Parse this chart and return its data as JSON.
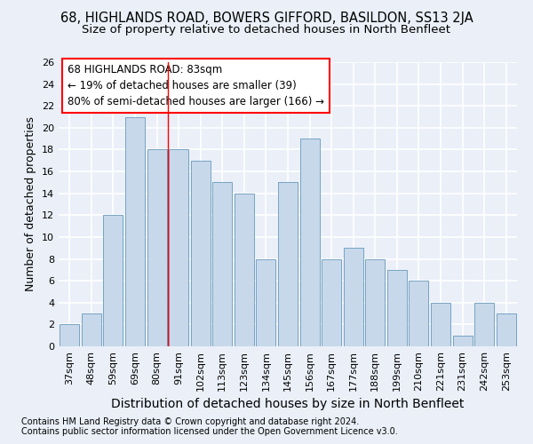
{
  "title_line1": "68, HIGHLANDS ROAD, BOWERS GIFFORD, BASILDON, SS13 2JA",
  "title_line2": "Size of property relative to detached houses in North Benfleet",
  "xlabel": "Distribution of detached houses by size in North Benfleet",
  "ylabel": "Number of detached properties",
  "footnote1": "Contains HM Land Registry data © Crown copyright and database right 2024.",
  "footnote2": "Contains public sector information licensed under the Open Government Licence v3.0.",
  "categories": [
    "37sqm",
    "48sqm",
    "59sqm",
    "69sqm",
    "80sqm",
    "91sqm",
    "102sqm",
    "113sqm",
    "123sqm",
    "134sqm",
    "145sqm",
    "156sqm",
    "167sqm",
    "177sqm",
    "188sqm",
    "199sqm",
    "210sqm",
    "221sqm",
    "231sqm",
    "242sqm",
    "253sqm"
  ],
  "values": [
    2,
    3,
    12,
    21,
    18,
    18,
    17,
    15,
    14,
    8,
    15,
    19,
    8,
    9,
    8,
    7,
    6,
    4,
    1,
    4,
    3
  ],
  "bar_color": "#c8d8eb",
  "bar_edge_color": "#6699bb",
  "highlight_bar_index": 4,
  "highlight_line_color": "red",
  "annotation_line1": "68 HIGHLANDS ROAD: 83sqm",
  "annotation_line2": "← 19% of detached houses are smaller (39)",
  "annotation_line3": "80% of semi-detached houses are larger (166) →",
  "annotation_box_color": "white",
  "annotation_box_edge_color": "red",
  "ylim": [
    0,
    26
  ],
  "yticks": [
    0,
    2,
    4,
    6,
    8,
    10,
    12,
    14,
    16,
    18,
    20,
    22,
    24,
    26
  ],
  "background_color": "#eaeff8",
  "grid_color": "white",
  "title_fontsize": 10.5,
  "subtitle_fontsize": 9.5,
  "ylabel_fontsize": 9,
  "xlabel_fontsize": 10,
  "tick_fontsize": 8,
  "footnote_fontsize": 7
}
